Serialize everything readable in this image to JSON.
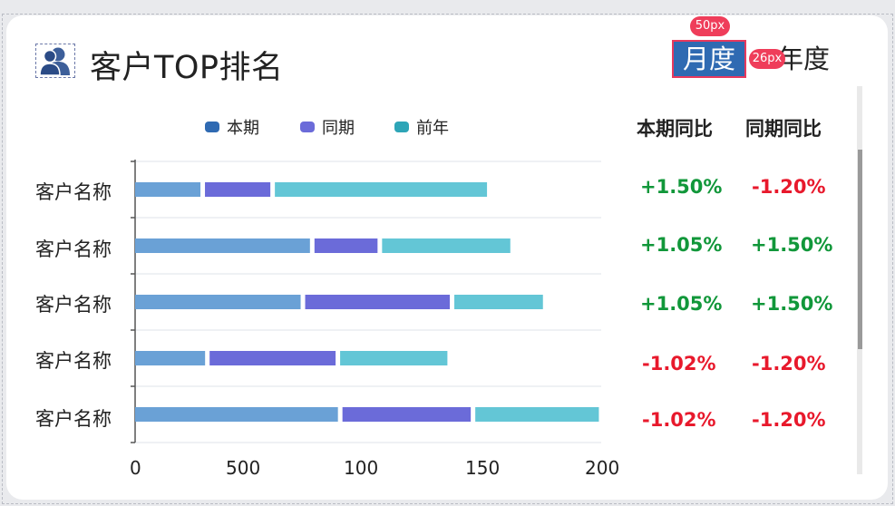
{
  "panel": {
    "title": "客户TOP排名",
    "icon": "users-icon",
    "tabs": [
      {
        "label": "月度",
        "selected": true
      },
      {
        "label": "年度",
        "selected": false
      }
    ],
    "annotations": [
      "50px",
      "26px"
    ],
    "accent_color": "#2f6ab2"
  },
  "chart_data": {
    "type": "bar",
    "orientation": "horizontal",
    "stacked": true,
    "categories": [
      "客户名称",
      "客户名称",
      "客户名称",
      "客户名称",
      "客户名称"
    ],
    "series": [
      {
        "name": "本期",
        "color": "#6aa1d6",
        "legend_color": "#2f6ab2",
        "values": [
          29,
          76,
          72,
          31,
          88
        ]
      },
      {
        "name": "同期",
        "color": "#6b6bd9",
        "legend_color": "#6b6bd9",
        "values": [
          30,
          29,
          64,
          56,
          57
        ]
      },
      {
        "name": "前年",
        "color": "#63c6d6",
        "legend_color": "#2ea5b7",
        "values": [
          92,
          56,
          39,
          47,
          54
        ]
      }
    ],
    "xlim": [
      0,
      200
    ],
    "xticks": [
      "0",
      "500",
      "100",
      "150",
      "200"
    ],
    "legend_position": "top",
    "grid": true
  },
  "compare": {
    "headers": [
      "本期同比",
      "同期同比"
    ],
    "rows": [
      {
        "current": "+1.50%",
        "previous": "-1.20%"
      },
      {
        "current": "+1.05%",
        "previous": "+1.50%"
      },
      {
        "current": "+1.05%",
        "previous": "+1.50%"
      },
      {
        "current": "-1.02%",
        "previous": "-1.20%"
      },
      {
        "current": "-1.02%",
        "previous": "-1.20%"
      }
    ],
    "positive_color": "#11973a",
    "negative_color": "#e8192c"
  }
}
